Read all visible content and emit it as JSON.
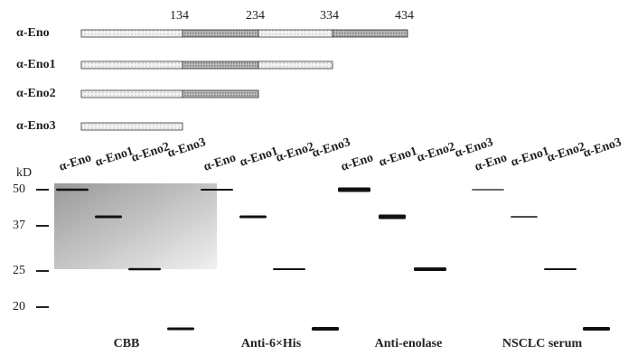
{
  "constructs": [
    {
      "label": "α-Eno"
    },
    {
      "label": "α-Eno1"
    },
    {
      "label": "α-Eno2"
    },
    {
      "label": "α-Eno3"
    }
  ],
  "positions": [
    134,
    234,
    334,
    434
  ],
  "blot": {
    "unit": "kD",
    "markers": [
      50,
      37,
      25,
      20
    ],
    "panels": [
      {
        "label": "CBB",
        "lanes": [
          "α-Eno",
          "α-Eno1",
          "α-Eno2",
          "α-Eno3"
        ]
      },
      {
        "label": "Anti-6×His",
        "lanes": [
          "α-Eno",
          "α-Eno1",
          "α-Eno2",
          "α-Eno3"
        ]
      },
      {
        "label": "Anti-enolase",
        "lanes": [
          "α-Eno",
          "α-Eno1",
          "α-Eno2",
          "α-Eno3"
        ]
      },
      {
        "label": "NSCLC serum",
        "lanes": [
          "α-Eno",
          "α-Eno1",
          "α-Eno2",
          "α-Eno3"
        ]
      }
    ]
  }
}
